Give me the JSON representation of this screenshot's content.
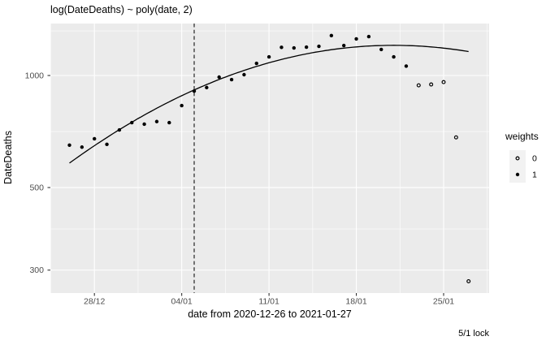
{
  "title": "log(DateDeaths) ~ poly(date, 2)",
  "caption": "5/1 lock",
  "axes": {
    "x": {
      "label": "date from 2020-12-26 to 2021-01-27",
      "tick_labels": [
        "28/12",
        "04/01",
        "11/01",
        "18/01",
        "25/01"
      ],
      "tick_days": [
        2,
        9,
        16,
        23,
        30
      ],
      "minor_days": [
        -1.5,
        5.5,
        12.5,
        19.5,
        26.5,
        33.5
      ]
    },
    "y": {
      "label": "DateDeaths",
      "scale": "log10",
      "tick_labels": [
        "1000",
        "500",
        "300"
      ],
      "tick_values": [
        1000,
        500,
        300
      ],
      "minor_values": [
        1318,
        707,
        387
      ]
    }
  },
  "legend": {
    "title": "weights",
    "entries": [
      {
        "label": "0",
        "marker": "open-circle"
      },
      {
        "label": "1",
        "marker": "filled-circle"
      }
    ]
  },
  "vline": {
    "date": "05/01",
    "day_index": 10,
    "linetype": "dashed"
  },
  "smooth": {
    "type": "quadratic-fit-of-log10",
    "fit_on_weight": 1,
    "se": false
  },
  "chart_data": {
    "type": "scatter",
    "title": "log(DateDeaths) ~ poly(date, 2)",
    "xlabel": "date from 2020-12-26 to 2021-01-27",
    "ylabel": "DateDeaths",
    "y_scale": "log10",
    "ylim": [
      262,
      1380
    ],
    "x_dates": [
      "26/12",
      "27/12",
      "28/12",
      "29/12",
      "30/12",
      "31/12",
      "01/01",
      "02/01",
      "03/01",
      "04/01",
      "05/01",
      "06/01",
      "07/01",
      "08/01",
      "09/01",
      "10/01",
      "11/01",
      "12/01",
      "13/01",
      "14/01",
      "15/01",
      "16/01",
      "17/01",
      "18/01",
      "19/01",
      "20/01",
      "21/01",
      "22/01",
      "23/01",
      "24/01",
      "25/01",
      "26/01",
      "27/01"
    ],
    "values": [
      650,
      642,
      676,
      653,
      714,
      747,
      740,
      752,
      747,
      830,
      908,
      928,
      990,
      975,
      1005,
      1078,
      1122,
      1190,
      1186,
      1192,
      1198,
      1280,
      1204,
      1254,
      1272,
      1175,
      1122,
      1060,
      941,
      946,
      960,
      682,
      280
    ],
    "weights": [
      1,
      1,
      1,
      1,
      1,
      1,
      1,
      1,
      1,
      1,
      1,
      1,
      1,
      1,
      1,
      1,
      1,
      1,
      1,
      1,
      1,
      1,
      1,
      1,
      1,
      1,
      1,
      1,
      0,
      0,
      0,
      0,
      0
    ],
    "legend_position": "right",
    "grid": true
  },
  "colors": {
    "panel_bg": "#EBEBEB",
    "grid": "#FFFFFF",
    "point": "#000000",
    "curve": "#000000",
    "vline": "#333333",
    "tick_mark": "#333333",
    "axis_text": "#4D4D4D",
    "legend_key_bg": "#F2F2F2",
    "text": "#000000"
  }
}
